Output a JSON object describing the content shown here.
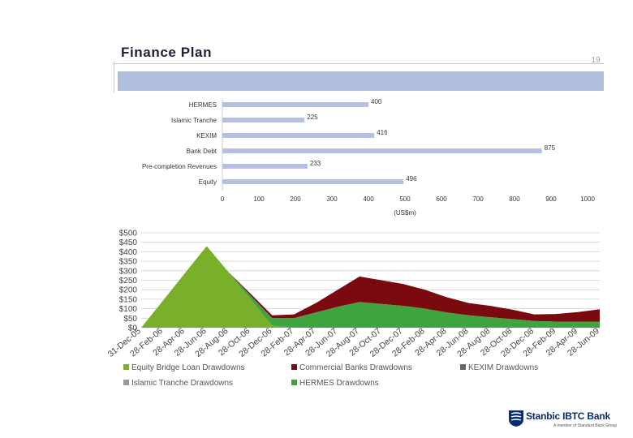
{
  "slide": {
    "title": "Finance Plan",
    "page_number": "19"
  },
  "colors": {
    "band": "#b1bfde",
    "bar": "#b4bfe2",
    "equity_bridge": "#7aaf2a",
    "commercial_banks": "#7a0a10",
    "hermes": "#3fa33f",
    "kexim": "#666666",
    "islamic": "#999999"
  },
  "chart_data": [
    {
      "type": "bar",
      "orientation": "horizontal",
      "categories": [
        "HERMES",
        "Islamic Tranche",
        "KEXIM",
        "Bank Debt",
        "Pre-completion Revenues",
        "Equity"
      ],
      "values": [
        400,
        225,
        416,
        875,
        233,
        496
      ],
      "value_labels": [
        "400",
        "225",
        "416",
        "875",
        "233",
        "496"
      ],
      "xlabel": "(US$m)",
      "xlim": [
        0,
        1000
      ],
      "xticks": [
        "0",
        "100",
        "200",
        "300",
        "400",
        "500",
        "600",
        "700",
        "800",
        "900",
        "1000"
      ],
      "grid": false
    },
    {
      "type": "area",
      "stacked": true,
      "categories": [
        "31-Dec-05",
        "28-Feb-06",
        "28-Apr-06",
        "28-Jun-06",
        "28-Aug-06",
        "28-Oct-06",
        "28-Dec-06",
        "28-Feb-07",
        "28-Apr-07",
        "28-Jun-07",
        "28-Aug-07",
        "28-Oct-07",
        "28-Dec-07",
        "28-Feb-08",
        "28-Apr-08",
        "28-Jun-08",
        "28-Aug-08",
        "28-Oct-08",
        "28-Dec-08",
        "28-Feb-09",
        "28-Apr-09",
        "28-Jun-09"
      ],
      "series": [
        {
          "name": "Equity Bridge Loan Drawdowns",
          "values": [
            0,
            143,
            287,
            430,
            290,
            150,
            10,
            0,
            0,
            0,
            0,
            0,
            0,
            0,
            0,
            0,
            0,
            0,
            0,
            0,
            0,
            0
          ]
        },
        {
          "name": "Commercial Banks Drawdowns",
          "values": [
            0,
            0,
            0,
            0,
            0,
            10,
            15,
            20,
            50,
            90,
            135,
            125,
            115,
            100,
            80,
            65,
            60,
            50,
            35,
            40,
            50,
            65
          ]
        },
        {
          "name": "KEXIM Drawdowns",
          "values": [
            0,
            0,
            0,
            0,
            0,
            0,
            0,
            0,
            0,
            0,
            0,
            0,
            0,
            0,
            0,
            0,
            0,
            0,
            0,
            0,
            0,
            0
          ]
        },
        {
          "name": "Islamic Tranche Drawdowns",
          "values": [
            0,
            0,
            0,
            0,
            0,
            0,
            0,
            0,
            0,
            0,
            0,
            0,
            0,
            0,
            0,
            0,
            0,
            0,
            0,
            0,
            0,
            0
          ]
        },
        {
          "name": "HERMES Drawdowns",
          "values": [
            0,
            0,
            0,
            0,
            3,
            20,
            40,
            50,
            80,
            110,
            135,
            125,
            115,
            100,
            80,
            65,
            55,
            45,
            35,
            32,
            32,
            32
          ]
        }
      ],
      "ylim": [
        0,
        500
      ],
      "yticks": [
        "$0",
        "$50",
        "$100",
        "$150",
        "$200",
        "$250",
        "$300",
        "$350",
        "$400",
        "$450",
        "$500"
      ],
      "grid": true,
      "legend_position": "bottom"
    }
  ],
  "logo": {
    "name": "Stanbic IBTC Bank",
    "tagline": "A member of Standard Bank Group"
  }
}
